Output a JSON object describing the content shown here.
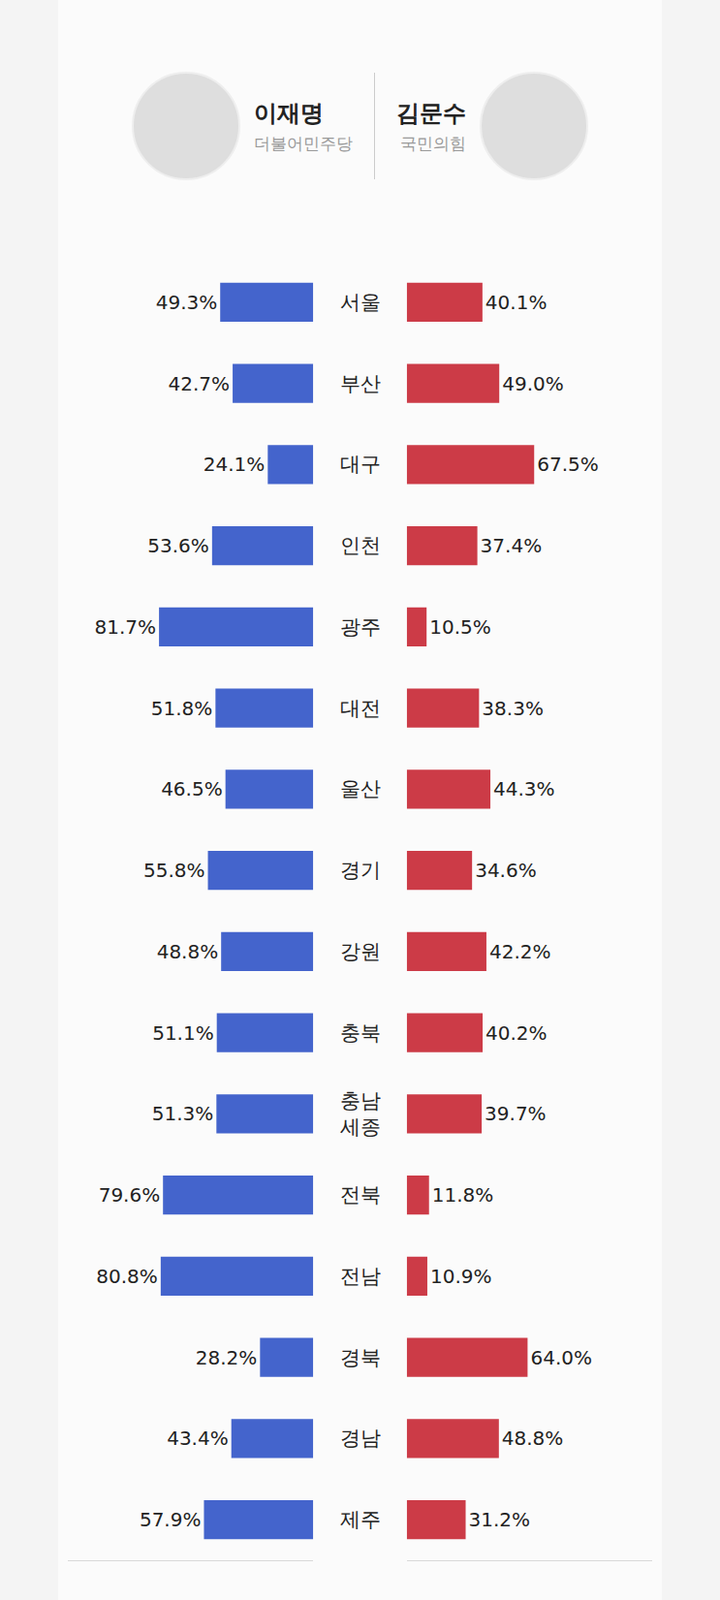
{
  "chart_data": {
    "type": "bar",
    "orientation": "horizontal",
    "categories": [
      "서울",
      "부산",
      "대구",
      "인천",
      "광주",
      "대전",
      "울산",
      "경기",
      "강원",
      "충북",
      "충남 세종",
      "전북",
      "전남",
      "경북",
      "경남",
      "제주"
    ],
    "series": [
      {
        "name": "이재명",
        "party": "더불어민주당",
        "color": "#4464cc",
        "values": [
          49.3,
          42.7,
          24.1,
          53.6,
          81.7,
          51.8,
          46.5,
          55.8,
          48.8,
          51.1,
          51.3,
          79.6,
          80.8,
          28.2,
          43.4,
          57.9
        ],
        "value_labels": [
          "49.3%",
          "42.7%",
          "24.1%",
          "53.6%",
          "81.7%",
          "51.8%",
          "46.5%",
          "55.8%",
          "48.8%",
          "51.1%",
          "51.3%",
          "79.6%",
          "80.8%",
          "28.2%",
          "43.4%",
          "57.9%"
        ]
      },
      {
        "name": "김문수",
        "party": "국민의힘",
        "color": "#cc3b47",
        "values": [
          40.1,
          49.0,
          67.5,
          37.4,
          10.5,
          38.3,
          44.3,
          34.6,
          42.2,
          40.2,
          39.7,
          11.8,
          10.9,
          64.0,
          48.8,
          31.2
        ],
        "value_labels": [
          "40.1%",
          "49.0%",
          "67.5%",
          "37.4%",
          "10.5%",
          "38.3%",
          "44.3%",
          "34.6%",
          "42.2%",
          "40.2%",
          "39.7%",
          "11.8%",
          "10.9%",
          "64.0%",
          "48.8%",
          "31.2%"
        ]
      }
    ],
    "xlim": [
      0,
      130
    ],
    "data_labels": true,
    "tick_labels": false,
    "grid": false
  }
}
